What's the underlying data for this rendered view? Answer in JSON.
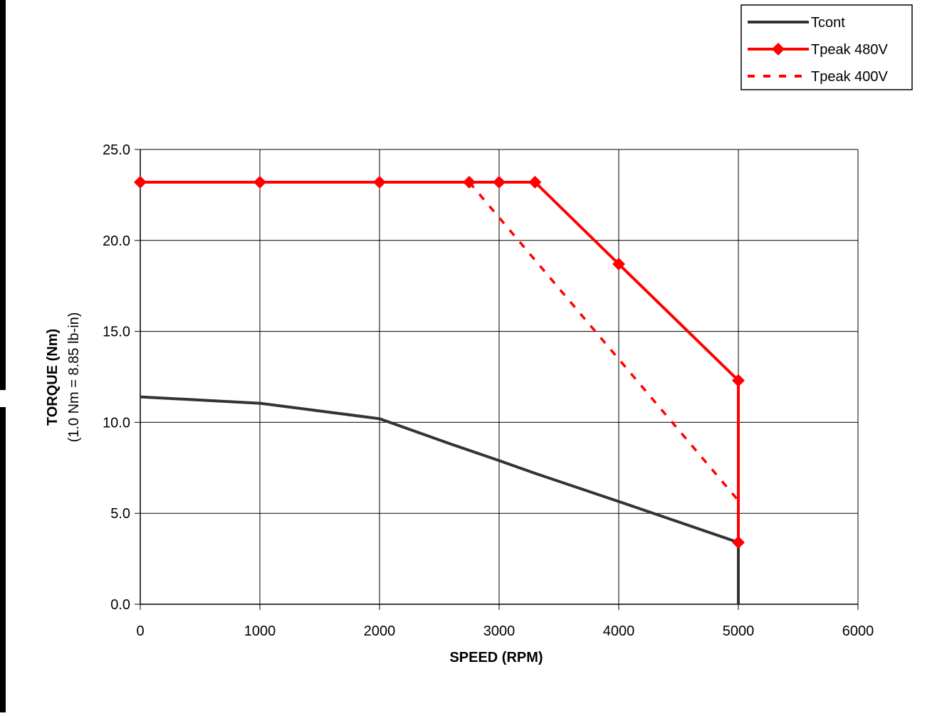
{
  "chart_data": {
    "type": "line",
    "title": "",
    "xlabel": "SPEED (RPM)",
    "ylabel": "TORQUE (Nm)",
    "ylabel_sub": "(1.0 Nm = 8.85 lb-in)",
    "xlim": [
      0,
      6000
    ],
    "ylim": [
      0,
      25
    ],
    "x_ticks": [
      0,
      1000,
      2000,
      3000,
      4000,
      5000,
      6000
    ],
    "x_tick_labels": [
      "0",
      "1000",
      "2000",
      "3000",
      "4000",
      "5000",
      "6000"
    ],
    "y_ticks": [
      0,
      5,
      10,
      15,
      20,
      25
    ],
    "y_tick_labels": [
      "0.0",
      "5.0",
      "10.0",
      "15.0",
      "20.0",
      "25.0"
    ],
    "grid": true,
    "legend_position": "top-right",
    "series": [
      {
        "name": "Tcont",
        "color": "#333333",
        "style": "solid",
        "marker": "none",
        "points": [
          [
            0,
            11.4
          ],
          [
            1000,
            11.05
          ],
          [
            2000,
            10.2
          ],
          [
            2600,
            8.8
          ],
          [
            3000,
            7.9
          ],
          [
            3300,
            7.2
          ],
          [
            4000,
            5.65
          ],
          [
            5000,
            3.4
          ],
          [
            5000,
            0
          ]
        ]
      },
      {
        "name": "Tpeak 480V",
        "color": "#ff0000",
        "style": "solid",
        "marker": "diamond",
        "points": [
          [
            0,
            23.2
          ],
          [
            1000,
            23.2
          ],
          [
            2000,
            23.2
          ],
          [
            2750,
            23.2
          ],
          [
            3000,
            23.2
          ],
          [
            3300,
            23.2
          ],
          [
            4000,
            18.7
          ],
          [
            5000,
            12.3
          ],
          [
            5000,
            3.4
          ]
        ]
      },
      {
        "name": "Tpeak 400V",
        "color": "#ff0000",
        "style": "dashed",
        "marker": "none",
        "points": [
          [
            0,
            23.2
          ],
          [
            2750,
            23.2
          ],
          [
            5000,
            5.7
          ]
        ]
      }
    ]
  }
}
